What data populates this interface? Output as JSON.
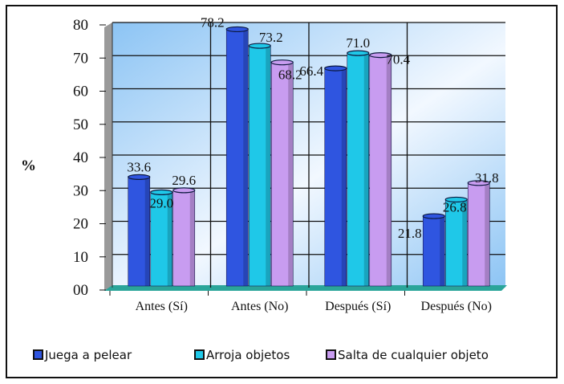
{
  "chart_data": {
    "type": "bar",
    "title": "",
    "xlabel": "",
    "ylabel": "%",
    "ylim": [
      0,
      80
    ],
    "yticks": [
      "00",
      "10",
      "20",
      "30",
      "40",
      "50",
      "60",
      "70",
      "80"
    ],
    "categories": [
      "Antes (Sí)",
      "Antes (No)",
      "Después (Sí)",
      "Después (No)"
    ],
    "series": [
      {
        "name": "Juega a pelear",
        "color": "#2f55e0",
        "values": [
          33.6,
          78.2,
          66.4,
          21.8
        ],
        "labels": [
          "33.6",
          "78.2",
          "66.4",
          "21.8"
        ]
      },
      {
        "name": "Arroja objetos",
        "color": "#1fc8e8",
        "values": [
          29.0,
          73.2,
          71.0,
          26.8
        ],
        "labels": [
          "29.0",
          "73.2",
          "71.0",
          "26.8"
        ]
      },
      {
        "name": "Salta de cualquier objeto",
        "color": "#c89cf0",
        "values": [
          29.6,
          68.2,
          70.4,
          31.8
        ],
        "labels": [
          "29.6",
          "68.2",
          "70.4",
          "31.8"
        ]
      }
    ],
    "grid": true,
    "legend": "bottom"
  }
}
